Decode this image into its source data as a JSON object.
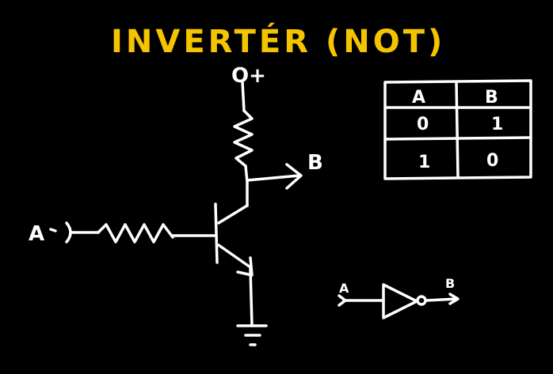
{
  "title": "INVERTÉR (NOT)",
  "colors": {
    "title": "#f5c400",
    "ink": "#ffffff",
    "background": "#000000"
  },
  "circuit": {
    "supply_label": "O+",
    "input_label": "A",
    "output_label": "B"
  },
  "truth_table": {
    "headers": [
      "A",
      "B"
    ],
    "rows": [
      [
        "0",
        "1"
      ],
      [
        "1",
        "0"
      ]
    ]
  },
  "gate_symbol": {
    "input_label": "A",
    "output_label": "B"
  }
}
